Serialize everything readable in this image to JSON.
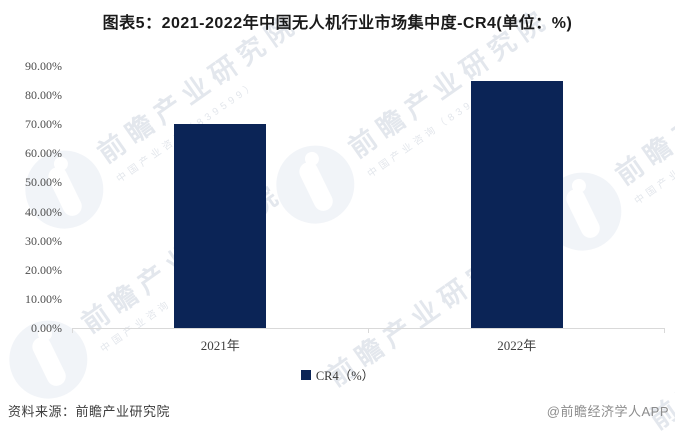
{
  "title": "图表5：2021-2022年中国无人机行业市场集中度-CR4(单位：%)",
  "chart_data": {
    "type": "bar",
    "title": "图表5：2021-2022年中国无人机行业市场集中度-CR4(单位：%)",
    "categories": [
      "2021年",
      "2022年"
    ],
    "series": [
      {
        "name": "CR4（%）",
        "values": [
          70,
          85
        ]
      }
    ],
    "values": [
      70,
      85
    ],
    "unit": "%",
    "ylim": [
      0,
      90
    ],
    "yticks": [
      90,
      80,
      70,
      60,
      50,
      40,
      30,
      20,
      10,
      0
    ],
    "ytick_labels": [
      "90.00%",
      "80.00%",
      "70.00%",
      "60.00%",
      "50.00%",
      "40.00%",
      "30.00%",
      "20.00%",
      "10.00%",
      "0.00%"
    ],
    "grid": false,
    "legend_position": "bottom",
    "bar_color": "#0B2456"
  },
  "legend": {
    "label": "CR4（%）",
    "swatch_color": "#0B2456"
  },
  "footer": {
    "source": "资料来源：前瞻产业研究院",
    "brand": "@前瞻经济学人APP"
  },
  "watermark": {
    "main": "前瞻产业研究院",
    "sub": "中国产业咨询（839599）"
  },
  "colors": {
    "bar": "#0B2456",
    "axis_line": "#D9D9D9",
    "tick_text": "#4D4D4D",
    "title_text": "#1A1A1A",
    "source_text": "#3D3D3D",
    "brand_text": "#8C8C8C"
  }
}
